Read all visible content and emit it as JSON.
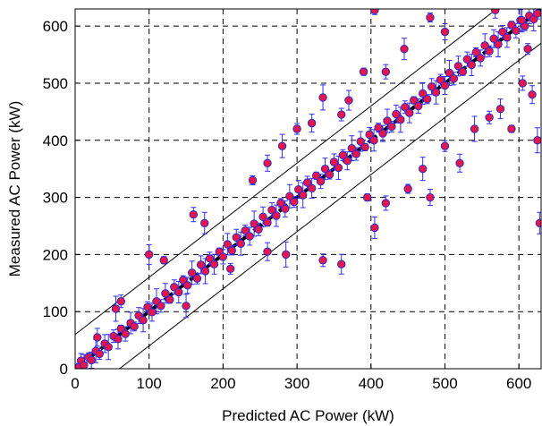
{
  "chart_data": {
    "type": "scatter",
    "title": "",
    "xlabel": "Predicted AC Power (kW)",
    "ylabel": "Measured AC Power (kW)",
    "xlim": [
      0,
      630
    ],
    "ylim": [
      0,
      630
    ],
    "xticks": [
      0,
      100,
      200,
      300,
      400,
      500,
      600
    ],
    "yticks": [
      0,
      100,
      200,
      300,
      400,
      500,
      600
    ],
    "grid": true,
    "grid_style": "dashed",
    "marker": {
      "shape": "circle",
      "fill": "#e8154a",
      "edge": "#2b2bcf"
    },
    "errorbar_color": "#2f2ff0",
    "reference_lines": [
      {
        "name": "",
        "slope": 1,
        "intercept": 0,
        "style": "thick-dashed",
        "color": "#000000"
      },
      {
        "name": "",
        "slope": 1,
        "intercept": 60,
        "style": "thin-solid",
        "color": "#000000"
      },
      {
        "name": "",
        "slope": 1,
        "intercept": -60,
        "style": "thin-solid",
        "color": "#000000"
      }
    ],
    "points": [
      [
        5,
        3
      ],
      [
        8,
        14
      ],
      [
        12,
        6
      ],
      [
        18,
        20
      ],
      [
        22,
        15
      ],
      [
        28,
        31
      ],
      [
        33,
        26
      ],
      [
        40,
        44
      ],
      [
        45,
        38
      ],
      [
        52,
        57
      ],
      [
        58,
        52
      ],
      [
        62,
        70
      ],
      [
        68,
        61
      ],
      [
        75,
        80
      ],
      [
        80,
        74
      ],
      [
        86,
        93
      ],
      [
        92,
        85
      ],
      [
        98,
        108
      ],
      [
        104,
        99
      ],
      [
        110,
        118
      ],
      [
        116,
        110
      ],
      [
        122,
        132
      ],
      [
        128,
        121
      ],
      [
        134,
        143
      ],
      [
        140,
        134
      ],
      [
        146,
        155
      ],
      [
        152,
        146
      ],
      [
        158,
        168
      ],
      [
        165,
        158
      ],
      [
        170,
        182
      ],
      [
        176,
        171
      ],
      [
        182,
        193
      ],
      [
        188,
        183
      ],
      [
        195,
        205
      ],
      [
        200,
        196
      ],
      [
        206,
        218
      ],
      [
        212,
        207
      ],
      [
        218,
        230
      ],
      [
        224,
        219
      ],
      [
        230,
        242
      ],
      [
        236,
        232
      ],
      [
        242,
        254
      ],
      [
        248,
        244
      ],
      [
        254,
        266
      ],
      [
        260,
        256
      ],
      [
        266,
        278
      ],
      [
        272,
        268
      ],
      [
        278,
        290
      ],
      [
        284,
        280
      ],
      [
        290,
        302
      ],
      [
        296,
        292
      ],
      [
        302,
        314
      ],
      [
        308,
        304
      ],
      [
        314,
        326
      ],
      [
        320,
        316
      ],
      [
        326,
        338
      ],
      [
        332,
        328
      ],
      [
        338,
        350
      ],
      [
        344,
        340
      ],
      [
        350,
        362
      ],
      [
        356,
        352
      ],
      [
        362,
        374
      ],
      [
        368,
        364
      ],
      [
        374,
        386
      ],
      [
        380,
        376
      ],
      [
        386,
        398
      ],
      [
        392,
        388
      ],
      [
        398,
        410
      ],
      [
        404,
        400
      ],
      [
        410,
        422
      ],
      [
        416,
        412
      ],
      [
        422,
        434
      ],
      [
        428,
        424
      ],
      [
        434,
        446
      ],
      [
        440,
        436
      ],
      [
        446,
        458
      ],
      [
        452,
        448
      ],
      [
        458,
        470
      ],
      [
        464,
        460
      ],
      [
        470,
        482
      ],
      [
        476,
        472
      ],
      [
        482,
        494
      ],
      [
        488,
        484
      ],
      [
        494,
        506
      ],
      [
        500,
        496
      ],
      [
        506,
        518
      ],
      [
        512,
        508
      ],
      [
        518,
        530
      ],
      [
        524,
        520
      ],
      [
        530,
        542
      ],
      [
        536,
        532
      ],
      [
        542,
        554
      ],
      [
        548,
        544
      ],
      [
        554,
        566
      ],
      [
        560,
        556
      ],
      [
        566,
        578
      ],
      [
        572,
        568
      ],
      [
        578,
        590
      ],
      [
        584,
        580
      ],
      [
        590,
        602
      ],
      [
        596,
        592
      ],
      [
        602,
        610
      ],
      [
        608,
        600
      ],
      [
        614,
        618
      ],
      [
        620,
        612
      ],
      [
        625,
        622
      ],
      [
        30,
        55
      ],
      [
        55,
        105
      ],
      [
        62,
        118
      ],
      [
        100,
        200
      ],
      [
        120,
        190
      ],
      [
        160,
        270
      ],
      [
        175,
        255
      ],
      [
        240,
        330
      ],
      [
        260,
        360
      ],
      [
        280,
        390
      ],
      [
        300,
        420
      ],
      [
        320,
        430
      ],
      [
        335,
        475
      ],
      [
        360,
        445
      ],
      [
        370,
        470
      ],
      [
        390,
        520
      ],
      [
        420,
        520
      ],
      [
        445,
        560
      ],
      [
        480,
        615
      ],
      [
        500,
        590
      ],
      [
        150,
        110
      ],
      [
        210,
        175
      ],
      [
        260,
        205
      ],
      [
        285,
        200
      ],
      [
        335,
        190
      ],
      [
        360,
        183
      ],
      [
        395,
        300
      ],
      [
        420,
        290
      ],
      [
        405,
        247
      ],
      [
        450,
        315
      ],
      [
        480,
        300
      ],
      [
        470,
        350
      ],
      [
        500,
        390
      ],
      [
        520,
        360
      ],
      [
        540,
        420
      ],
      [
        560,
        440
      ],
      [
        575,
        455
      ],
      [
        590,
        420
      ],
      [
        605,
        500
      ],
      [
        628,
        255
      ],
      [
        405,
        628
      ],
      [
        568,
        628
      ],
      [
        604,
        610
      ],
      [
        612,
        560
      ],
      [
        618,
        480
      ],
      [
        625,
        400
      ]
    ]
  }
}
